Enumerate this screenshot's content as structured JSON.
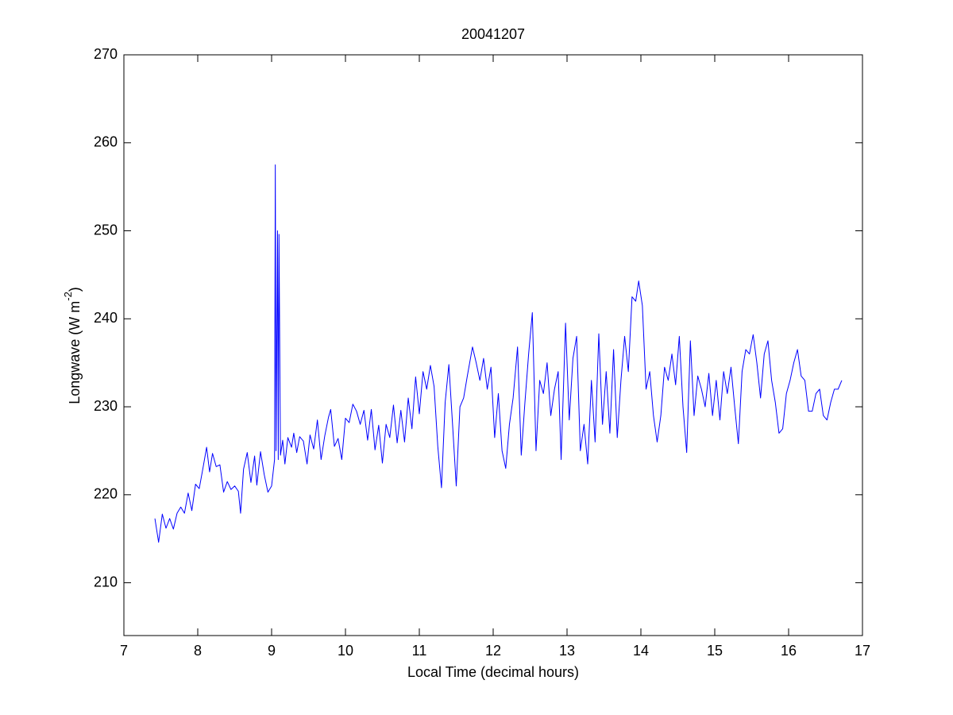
{
  "chart_data": {
    "type": "line",
    "title": "20041207",
    "x_label": "Local Time (decimal hours)",
    "y_label": "Longwave (W m",
    "y_label_exponent": "-2",
    "y_label_suffix": ")",
    "xlim": [
      7,
      17
    ],
    "xticks": [
      7,
      8,
      9,
      10,
      11,
      12,
      13,
      14,
      15,
      16,
      17
    ],
    "ylim": [
      204,
      270
    ],
    "yticks": [
      210,
      220,
      230,
      240,
      250,
      260,
      270
    ],
    "grid": false,
    "x": [
      7.42,
      7.47,
      7.52,
      7.57,
      7.62,
      7.67,
      7.72,
      7.77,
      7.82,
      7.87,
      7.92,
      7.97,
      8.02,
      8.07,
      8.12,
      8.16,
      8.2,
      8.25,
      8.3,
      8.35,
      8.4,
      8.45,
      8.5,
      8.55,
      8.58,
      8.62,
      8.67,
      8.72,
      8.77,
      8.8,
      8.85,
      8.9,
      8.95,
      9.0,
      9.04,
      9.05,
      9.06,
      9.08,
      9.09,
      9.1,
      9.12,
      9.15,
      9.18,
      9.22,
      9.27,
      9.3,
      9.34,
      9.38,
      9.43,
      9.48,
      9.52,
      9.57,
      9.62,
      9.67,
      9.72,
      9.77,
      9.8,
      9.85,
      9.9,
      9.95,
      10.0,
      10.05,
      10.1,
      10.15,
      10.2,
      10.25,
      10.3,
      10.35,
      10.4,
      10.45,
      10.5,
      10.55,
      10.6,
      10.65,
      10.7,
      10.75,
      10.8,
      10.85,
      10.9,
      10.95,
      11.0,
      11.05,
      11.1,
      11.15,
      11.2,
      11.25,
      11.3,
      11.35,
      11.4,
      11.45,
      11.5,
      11.55,
      11.6,
      11.65,
      11.72,
      11.77,
      11.82,
      11.87,
      11.92,
      11.97,
      12.02,
      12.07,
      12.12,
      12.17,
      12.22,
      12.27,
      12.33,
      12.38,
      12.43,
      12.48,
      12.53,
      12.58,
      12.63,
      12.68,
      12.73,
      12.78,
      12.83,
      12.88,
      12.92,
      12.98,
      13.03,
      13.08,
      13.13,
      13.18,
      13.23,
      13.28,
      13.33,
      13.38,
      13.43,
      13.48,
      13.53,
      13.58,
      13.63,
      13.68,
      13.73,
      13.78,
      13.83,
      13.88,
      13.93,
      13.97,
      14.02,
      14.07,
      14.12,
      14.17,
      14.22,
      14.27,
      14.32,
      14.37,
      14.42,
      14.47,
      14.52,
      14.57,
      14.62,
      14.67,
      14.72,
      14.77,
      14.82,
      14.87,
      14.92,
      14.97,
      15.02,
      15.07,
      15.12,
      15.17,
      15.22,
      15.27,
      15.32,
      15.37,
      15.42,
      15.47,
      15.52,
      15.57,
      15.62,
      15.67,
      15.72,
      15.77,
      15.82,
      15.87,
      15.92,
      15.97,
      16.02,
      16.07,
      16.12,
      16.17,
      16.22,
      16.27,
      16.32,
      16.37,
      16.42,
      16.47,
      16.52,
      16.57,
      16.62,
      16.67,
      16.72
    ],
    "series": [
      {
        "color": "#0000ff",
        "values": [
          217.3,
          214.6,
          217.8,
          216.2,
          217.3,
          216.1,
          217.9,
          218.6,
          217.9,
          220.2,
          218.2,
          221.2,
          220.7,
          223.0,
          225.4,
          222.6,
          224.7,
          223.2,
          223.4,
          220.3,
          221.5,
          220.6,
          221.0,
          220.4,
          217.9,
          222.9,
          224.8,
          221.4,
          224.4,
          221.1,
          224.9,
          222.3,
          220.3,
          221.0,
          224.0,
          257.5,
          225.0,
          250.0,
          224.0,
          249.6,
          224.5,
          226.2,
          223.5,
          226.5,
          225.4,
          227.0,
          224.8,
          226.6,
          226.1,
          223.5,
          226.8,
          225.2,
          228.5,
          224.0,
          226.7,
          228.8,
          229.7,
          225.5,
          226.4,
          224.0,
          228.7,
          228.2,
          230.3,
          229.5,
          228.0,
          229.6,
          226.2,
          229.7,
          225.1,
          227.9,
          223.6,
          228.0,
          226.5,
          230.2,
          225.9,
          229.6,
          226.0,
          231.0,
          227.5,
          233.4,
          229.2,
          234.0,
          232.0,
          234.7,
          232.3,
          225.5,
          220.8,
          230.5,
          234.8,
          228.0,
          221.0,
          230.0,
          231.0,
          233.5,
          236.8,
          235.0,
          233.0,
          235.5,
          232.0,
          234.5,
          226.5,
          231.5,
          225.0,
          223.0,
          228.0,
          231.0,
          236.8,
          224.5,
          230.5,
          236.0,
          240.7,
          225.0,
          233.0,
          231.5,
          235.0,
          229.0,
          232.0,
          234.0,
          224.0,
          239.5,
          228.5,
          235.5,
          238.0,
          225.0,
          228.0,
          223.5,
          233.0,
          226.0,
          238.3,
          228.0,
          234.0,
          227.0,
          236.5,
          226.5,
          233.0,
          238.0,
          234.0,
          242.5,
          242.0,
          244.3,
          241.5,
          232.0,
          234.0,
          229.0,
          226.0,
          229.0,
          234.5,
          233.0,
          236.0,
          232.5,
          238.0,
          230.0,
          224.8,
          237.5,
          229.0,
          233.5,
          232.0,
          230.0,
          233.8,
          229.0,
          233.0,
          228.5,
          234.0,
          231.5,
          234.5,
          230.0,
          225.8,
          234.0,
          236.5,
          236.0,
          238.2,
          235.0,
          231.0,
          236.0,
          237.5,
          233.0,
          230.5,
          227.0,
          227.5,
          231.5,
          233.0,
          235.0,
          236.5,
          233.5,
          233.0,
          229.5,
          229.5,
          231.5,
          232.0,
          229.0,
          228.5,
          230.5,
          232.0,
          232.0,
          233.0
        ]
      }
    ]
  }
}
